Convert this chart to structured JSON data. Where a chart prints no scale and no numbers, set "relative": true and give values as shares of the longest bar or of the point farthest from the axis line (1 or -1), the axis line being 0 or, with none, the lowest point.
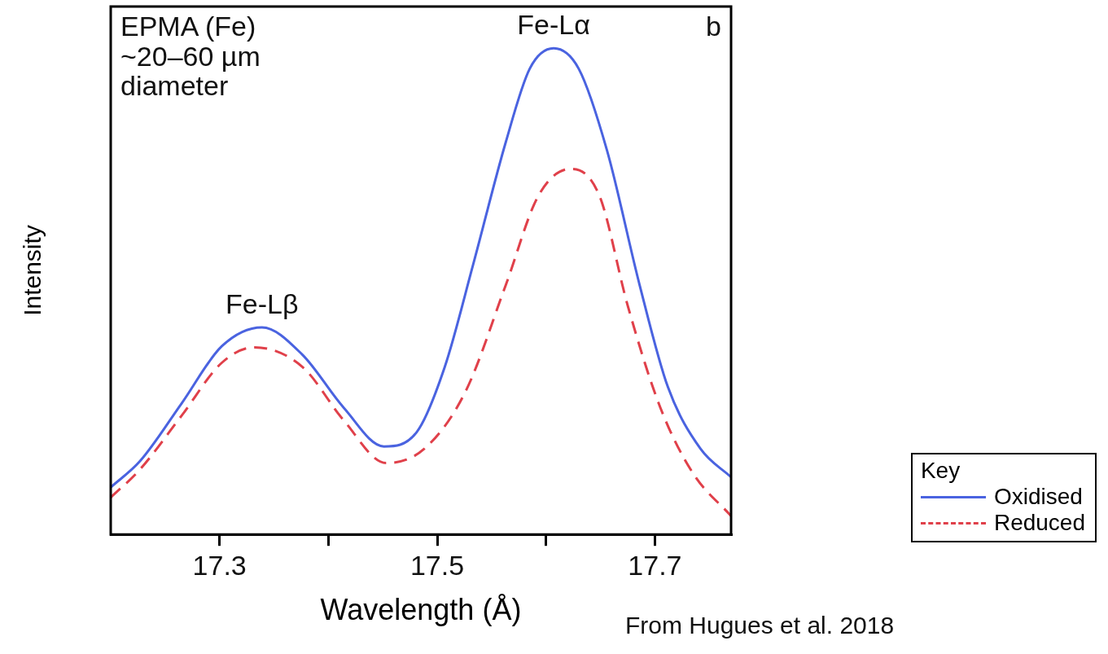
{
  "chart_data": {
    "type": "line",
    "relative": true,
    "xlabel": "Wavelength (Å)",
    "ylabel": "Intensity",
    "legend_title": "Key",
    "legend": "bottom right",
    "marker": "none",
    "grid": false,
    "xlim": [
      17.2,
      17.77
    ],
    "xticks": [
      17.3,
      {
        "value": 17.4,
        "label": null
      },
      17.5,
      {
        "value": 17.6,
        "label": null
      },
      17.7
    ],
    "annotations": [
      "EPMA (Fe)\n~20–60 µm\ndiameter",
      "b",
      {
        "text": "Fe-Lα",
        "x": 17.607,
        "y": 1
      },
      {
        "text": "Fe-Lβ",
        "x": 17.339,
        "y": 0.426
      },
      "From Hugues et al. 2018"
    ],
    "series": [
      {
        "name": "Oxidised",
        "color": "#4a63e0",
        "line_style": "solid",
        "x": [
          17.2,
          17.227,
          17.265,
          17.302,
          17.339,
          17.376,
          17.414,
          17.451,
          17.481,
          17.507,
          17.533,
          17.563,
          17.585,
          17.607,
          17.63,
          17.656,
          17.686,
          17.712,
          17.742,
          17.77
        ],
        "values": [
          0.097,
          0.151,
          0.269,
          0.387,
          0.426,
          0.37,
          0.261,
          0.181,
          0.21,
          0.345,
          0.555,
          0.807,
          0.958,
          1,
          0.958,
          0.79,
          0.513,
          0.303,
          0.176,
          0.118
        ]
      },
      {
        "name": "Reduced",
        "color": "#e0404a",
        "line_style": "dashed",
        "x": [
          17.2,
          17.227,
          17.265,
          17.302,
          17.332,
          17.376,
          17.414,
          17.453,
          17.488,
          17.526,
          17.563,
          17.593,
          17.623,
          17.649,
          17.675,
          17.705,
          17.735,
          17.77
        ],
        "values": [
          0.076,
          0.134,
          0.244,
          0.353,
          0.385,
          0.345,
          0.235,
          0.147,
          0.176,
          0.294,
          0.513,
          0.697,
          0.752,
          0.697,
          0.471,
          0.261,
          0.126,
          0.038
        ]
      }
    ]
  }
}
